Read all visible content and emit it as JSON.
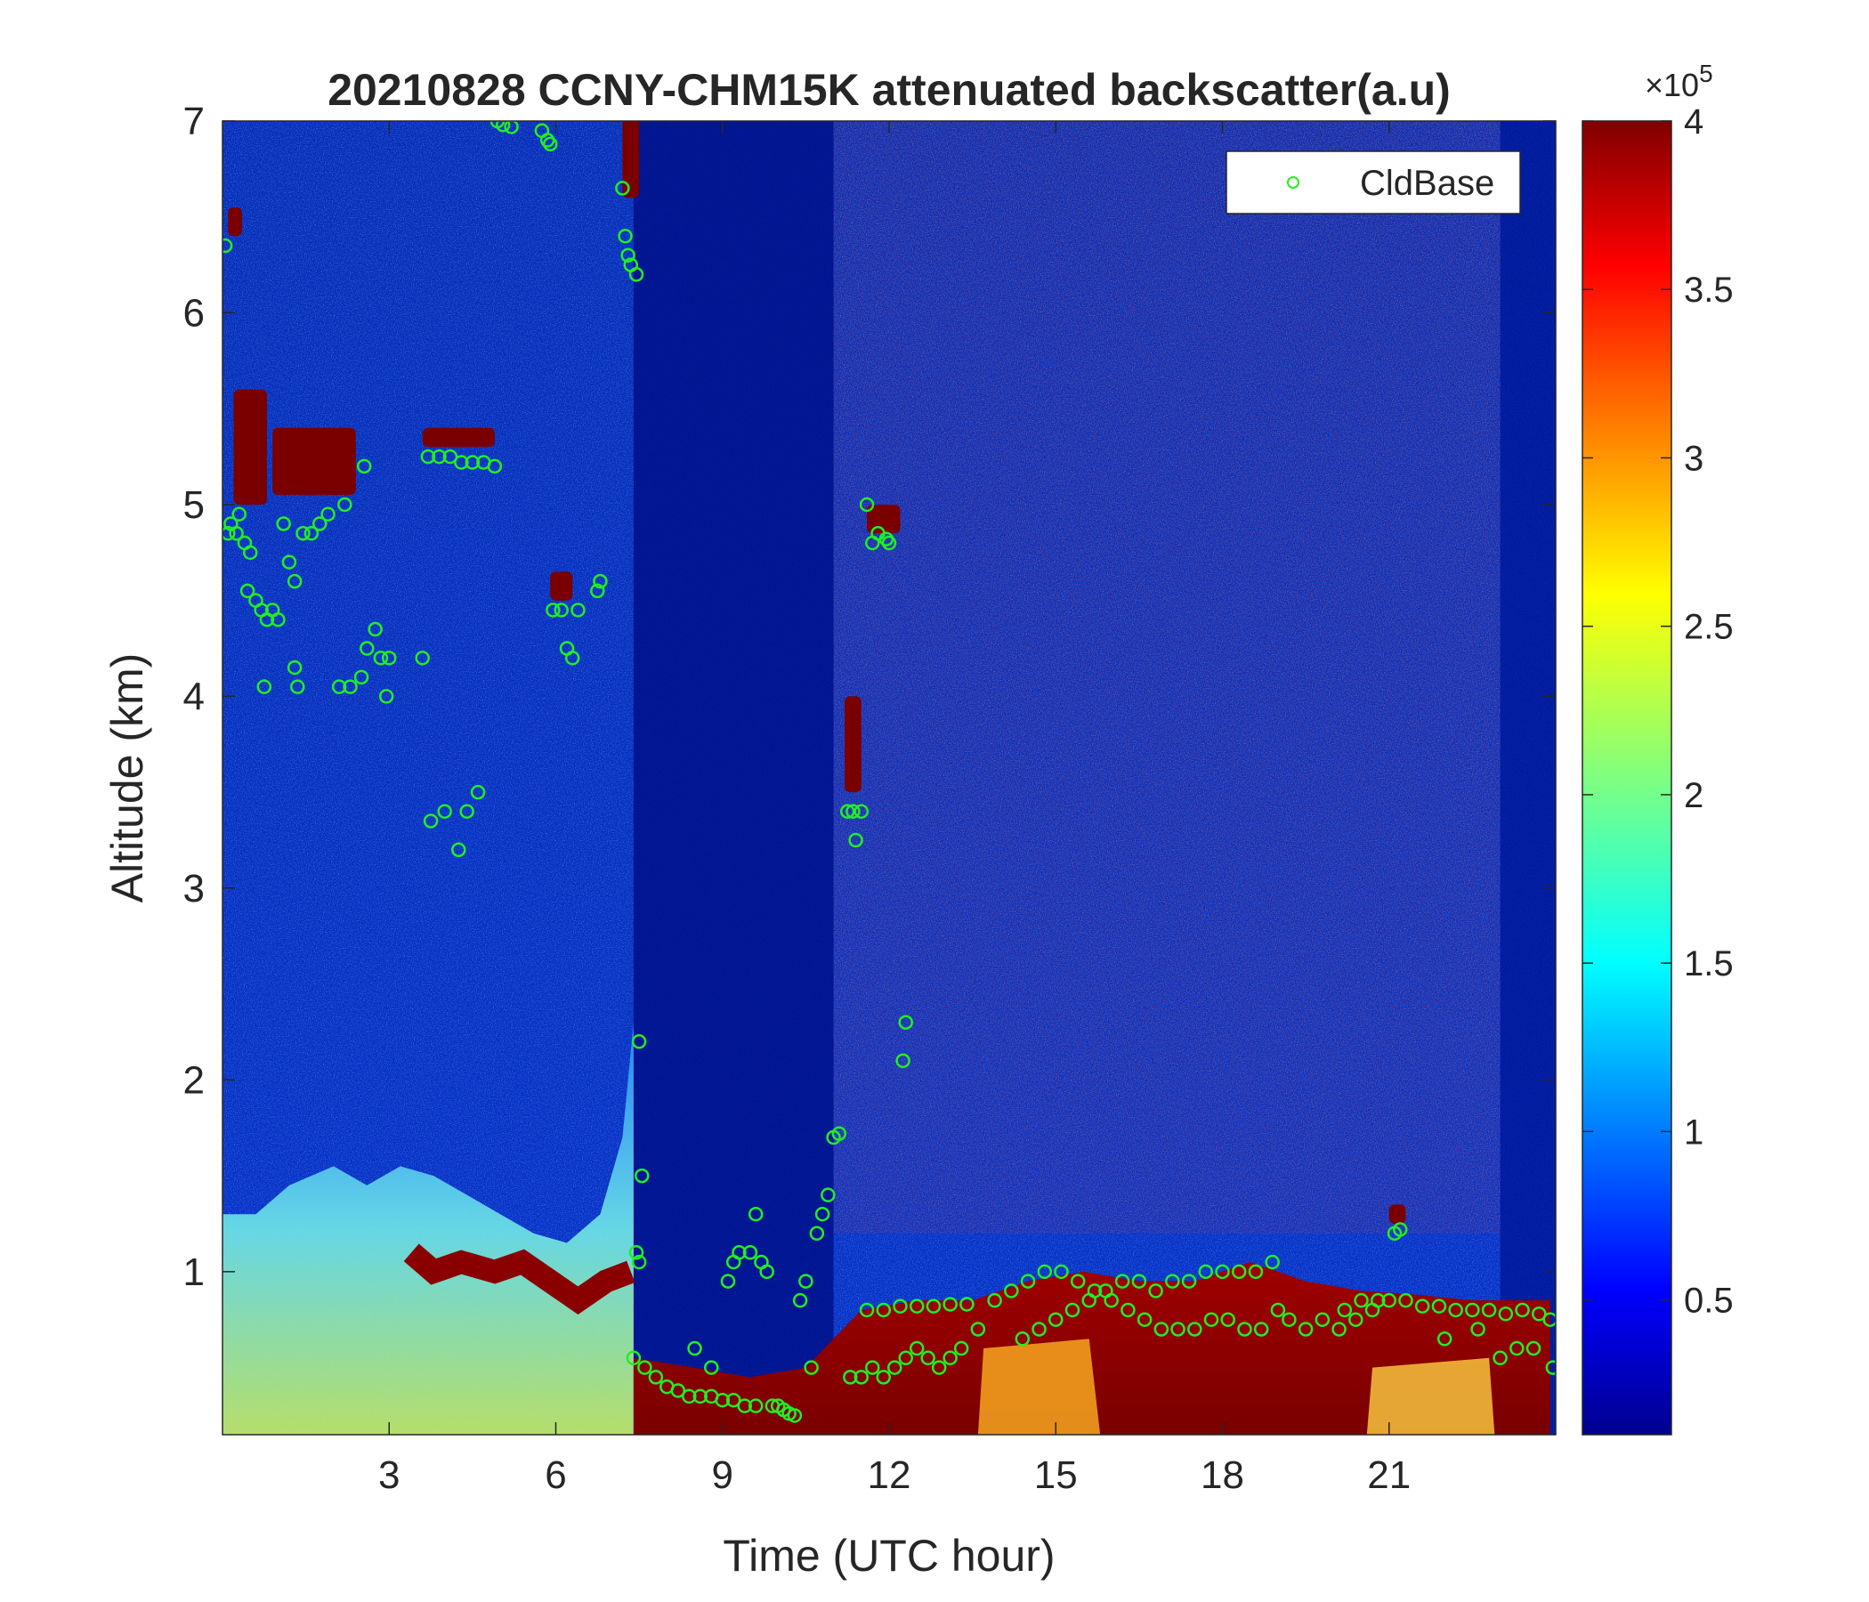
{
  "chart_data": {
    "type": "heatmap",
    "title": "20210828 CCNY-CHM15K attenuated backscatter(a.u)",
    "xlabel": "Time (UTC hour)",
    "ylabel": "Altitude (km)",
    "xlim": [
      0,
      24
    ],
    "ylim": [
      0.15,
      7
    ],
    "xticks": [
      "3",
      "6",
      "9",
      "12",
      "15",
      "18",
      "21"
    ],
    "xtick_values": [
      3,
      6,
      9,
      12,
      15,
      18,
      21
    ],
    "yticks": [
      "1",
      "2",
      "3",
      "4",
      "5",
      "6",
      "7"
    ],
    "ytick_values": [
      1,
      2,
      3,
      4,
      5,
      6,
      7
    ],
    "colorbar": {
      "colormap": "jet",
      "range": [
        10000,
        400000
      ],
      "ticks": [
        "0.5",
        "1",
        "1.5",
        "2",
        "2.5",
        "3",
        "3.5",
        "4"
      ],
      "tick_values": [
        0.5,
        1,
        1.5,
        2,
        2.5,
        3,
        3.5,
        4
      ],
      "exponent_label": "×10",
      "exponent": "5"
    },
    "legend": {
      "placement": "top-right",
      "entries": [
        "CldBase"
      ]
    },
    "series": [
      {
        "name": "CldBase",
        "marker": "circle",
        "color": "#22ee22",
        "points": [
          [
            0.05,
            6.35
          ],
          [
            0.1,
            4.85
          ],
          [
            0.15,
            4.9
          ],
          [
            0.25,
            4.85
          ],
          [
            0.3,
            4.95
          ],
          [
            0.4,
            4.8
          ],
          [
            0.5,
            4.75
          ],
          [
            0.45,
            4.55
          ],
          [
            0.6,
            4.5
          ],
          [
            0.7,
            4.45
          ],
          [
            0.8,
            4.4
          ],
          [
            0.9,
            4.45
          ],
          [
            1.0,
            4.4
          ],
          [
            1.1,
            4.9
          ],
          [
            1.2,
            4.7
          ],
          [
            1.3,
            4.6
          ],
          [
            1.45,
            4.85
          ],
          [
            1.6,
            4.85
          ],
          [
            1.75,
            4.9
          ],
          [
            1.9,
            4.95
          ],
          [
            2.2,
            5.0
          ],
          [
            2.55,
            5.2
          ],
          [
            0.75,
            4.05
          ],
          [
            1.3,
            4.15
          ],
          [
            1.35,
            4.05
          ],
          [
            2.1,
            4.05
          ],
          [
            2.3,
            4.05
          ],
          [
            2.5,
            4.1
          ],
          [
            2.6,
            4.25
          ],
          [
            2.75,
            4.35
          ],
          [
            2.85,
            4.2
          ],
          [
            3.0,
            4.2
          ],
          [
            2.95,
            4.0
          ],
          [
            3.6,
            4.2
          ],
          [
            3.7,
            5.25
          ],
          [
            3.9,
            5.25
          ],
          [
            4.1,
            5.25
          ],
          [
            4.3,
            5.22
          ],
          [
            4.5,
            5.22
          ],
          [
            4.7,
            5.22
          ],
          [
            4.9,
            5.2
          ],
          [
            4.95,
            7.0
          ],
          [
            5.05,
            6.98
          ],
          [
            5.2,
            6.97
          ],
          [
            5.75,
            6.95
          ],
          [
            5.85,
            6.9
          ],
          [
            5.9,
            6.88
          ],
          [
            5.95,
            4.45
          ],
          [
            6.1,
            4.45
          ],
          [
            6.2,
            4.25
          ],
          [
            6.3,
            4.2
          ],
          [
            6.4,
            4.45
          ],
          [
            6.75,
            4.55
          ],
          [
            6.8,
            4.6
          ],
          [
            3.75,
            3.35
          ],
          [
            4.0,
            3.4
          ],
          [
            4.25,
            3.2
          ],
          [
            4.4,
            3.4
          ],
          [
            4.6,
            3.5
          ],
          [
            7.2,
            6.65
          ],
          [
            7.25,
            6.4
          ],
          [
            7.3,
            6.3
          ],
          [
            7.35,
            6.25
          ],
          [
            7.45,
            6.2
          ],
          [
            7.5,
            2.2
          ],
          [
            7.55,
            1.5
          ],
          [
            7.45,
            1.1
          ],
          [
            7.5,
            1.05
          ],
          [
            7.4,
            0.55
          ],
          [
            7.6,
            0.5
          ],
          [
            7.8,
            0.45
          ],
          [
            8.0,
            0.4
          ],
          [
            8.2,
            0.38
          ],
          [
            8.4,
            0.35
          ],
          [
            8.6,
            0.35
          ],
          [
            8.8,
            0.35
          ],
          [
            9.0,
            0.33
          ],
          [
            9.2,
            0.33
          ],
          [
            9.4,
            0.3
          ],
          [
            9.6,
            0.3
          ],
          [
            8.5,
            0.6
          ],
          [
            8.8,
            0.5
          ],
          [
            9.1,
            0.95
          ],
          [
            9.2,
            1.05
          ],
          [
            9.3,
            1.1
          ],
          [
            9.5,
            1.1
          ],
          [
            9.6,
            1.3
          ],
          [
            9.7,
            1.05
          ],
          [
            9.8,
            1.0
          ],
          [
            9.9,
            0.3
          ],
          [
            10.0,
            0.3
          ],
          [
            10.1,
            0.28
          ],
          [
            10.2,
            0.26
          ],
          [
            10.3,
            0.25
          ],
          [
            10.4,
            0.85
          ],
          [
            10.5,
            0.95
          ],
          [
            10.6,
            0.5
          ],
          [
            10.7,
            1.2
          ],
          [
            10.8,
            1.3
          ],
          [
            10.9,
            1.4
          ],
          [
            11.0,
            1.7
          ],
          [
            11.1,
            1.72
          ],
          [
            11.25,
            3.4
          ],
          [
            11.35,
            3.4
          ],
          [
            11.5,
            3.4
          ],
          [
            11.4,
            3.25
          ],
          [
            11.6,
            5.0
          ],
          [
            11.7,
            4.8
          ],
          [
            11.8,
            4.85
          ],
          [
            11.95,
            4.82
          ],
          [
            12.0,
            4.8
          ],
          [
            12.3,
            2.3
          ],
          [
            12.25,
            2.1
          ],
          [
            11.3,
            0.45
          ],
          [
            11.5,
            0.45
          ],
          [
            11.7,
            0.5
          ],
          [
            11.9,
            0.45
          ],
          [
            12.1,
            0.5
          ],
          [
            12.3,
            0.55
          ],
          [
            12.5,
            0.6
          ],
          [
            12.7,
            0.55
          ],
          [
            12.9,
            0.5
          ],
          [
            13.1,
            0.55
          ],
          [
            13.3,
            0.6
          ],
          [
            11.6,
            0.8
          ],
          [
            11.9,
            0.8
          ],
          [
            12.2,
            0.82
          ],
          [
            12.5,
            0.82
          ],
          [
            12.8,
            0.82
          ],
          [
            13.1,
            0.83
          ],
          [
            13.4,
            0.83
          ],
          [
            13.6,
            0.7
          ],
          [
            13.9,
            0.85
          ],
          [
            14.2,
            0.9
          ],
          [
            14.5,
            0.95
          ],
          [
            14.8,
            1.0
          ],
          [
            15.1,
            1.0
          ],
          [
            15.4,
            0.95
          ],
          [
            15.7,
            0.9
          ],
          [
            16.0,
            0.85
          ],
          [
            16.3,
            0.8
          ],
          [
            16.6,
            0.75
          ],
          [
            14.4,
            0.65
          ],
          [
            14.7,
            0.7
          ],
          [
            15.0,
            0.75
          ],
          [
            15.3,
            0.8
          ],
          [
            15.6,
            0.85
          ],
          [
            15.9,
            0.9
          ],
          [
            16.2,
            0.95
          ],
          [
            16.5,
            0.95
          ],
          [
            16.8,
            0.9
          ],
          [
            17.1,
            0.95
          ],
          [
            17.4,
            0.95
          ],
          [
            17.7,
            1.0
          ],
          [
            18.0,
            1.0
          ],
          [
            18.3,
            1.0
          ],
          [
            18.6,
            1.0
          ],
          [
            18.9,
            1.05
          ],
          [
            16.9,
            0.7
          ],
          [
            17.2,
            0.7
          ],
          [
            17.5,
            0.7
          ],
          [
            17.8,
            0.75
          ],
          [
            18.1,
            0.75
          ],
          [
            18.4,
            0.7
          ],
          [
            18.7,
            0.7
          ],
          [
            19.0,
            0.8
          ],
          [
            19.2,
            0.75
          ],
          [
            19.5,
            0.7
          ],
          [
            19.8,
            0.75
          ],
          [
            20.1,
            0.7
          ],
          [
            20.4,
            0.75
          ],
          [
            20.7,
            0.8
          ],
          [
            21.0,
            0.85
          ],
          [
            21.3,
            0.85
          ],
          [
            21.6,
            0.82
          ],
          [
            21.9,
            0.82
          ],
          [
            22.2,
            0.8
          ],
          [
            22.5,
            0.8
          ],
          [
            22.8,
            0.8
          ],
          [
            23.1,
            0.78
          ],
          [
            23.4,
            0.8
          ],
          [
            23.7,
            0.78
          ],
          [
            23.9,
            0.75
          ],
          [
            20.2,
            0.8
          ],
          [
            20.5,
            0.85
          ],
          [
            20.8,
            0.85
          ],
          [
            21.2,
            1.22
          ],
          [
            21.1,
            1.2
          ],
          [
            22.0,
            0.65
          ],
          [
            22.6,
            0.7
          ],
          [
            23.0,
            0.55
          ],
          [
            23.3,
            0.6
          ],
          [
            23.6,
            0.6
          ],
          [
            23.95,
            0.5
          ]
        ]
      }
    ]
  }
}
